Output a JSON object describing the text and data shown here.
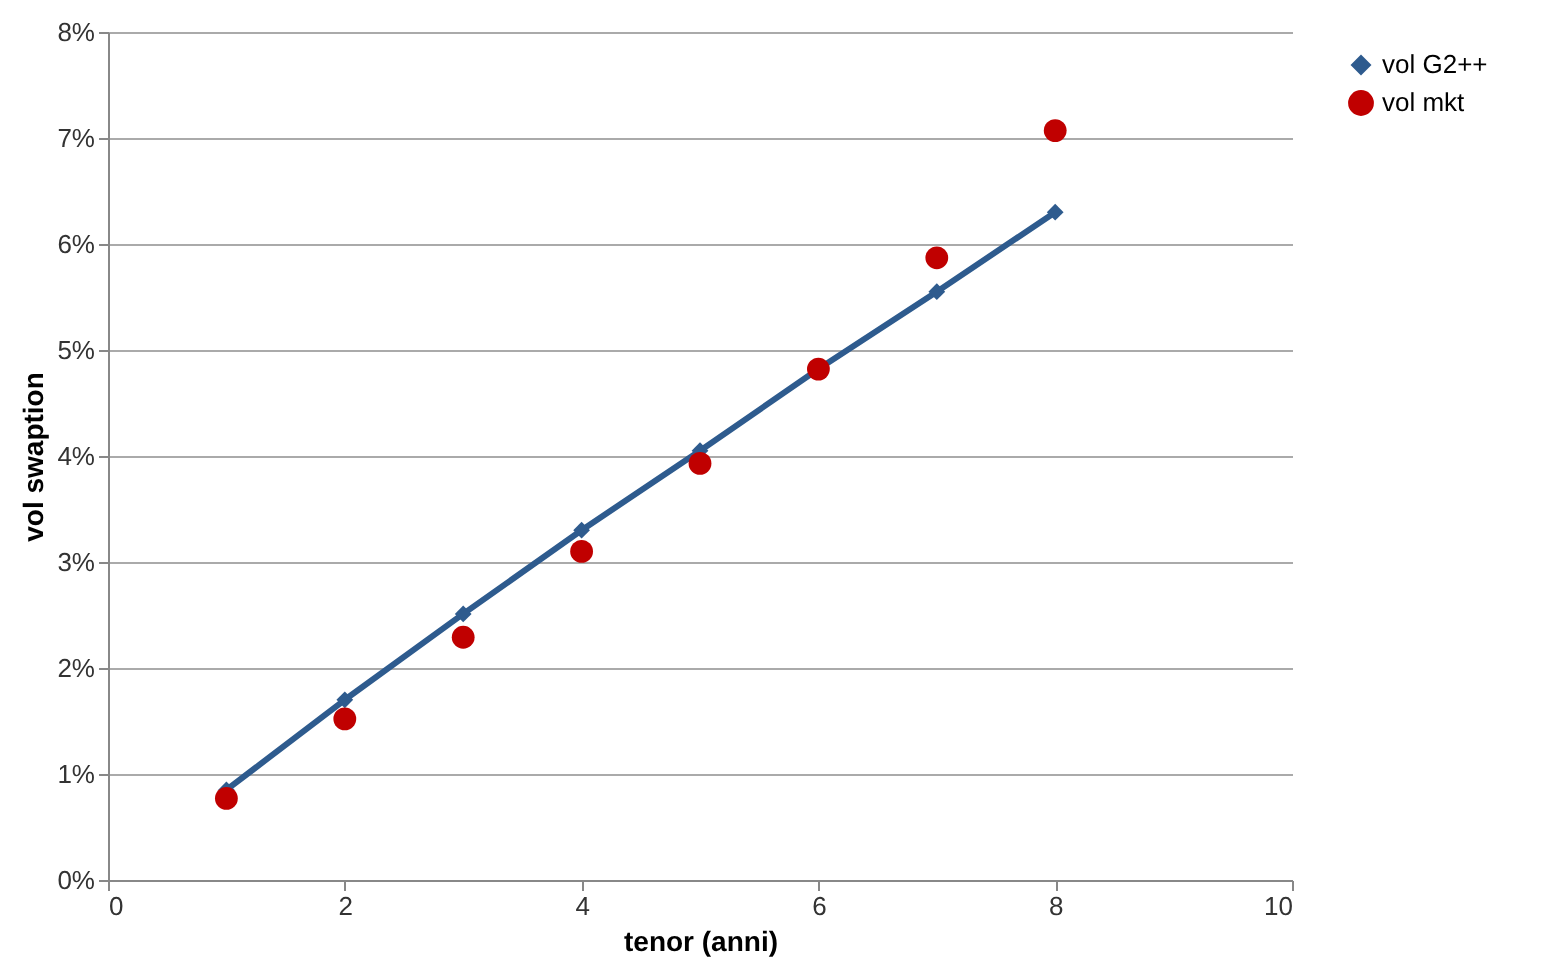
{
  "chart_data": {
    "type": "line",
    "xlabel": "tenor (anni)",
    "ylabel": "vol swaption",
    "xlim": [
      0,
      10
    ],
    "xticks": [
      0,
      2,
      4,
      6,
      8,
      10
    ],
    "ylim": [
      0,
      8
    ],
    "yticks": [
      {
        "value": 0,
        "label": "0%"
      },
      {
        "value": 1,
        "label": "1%"
      },
      {
        "value": 2,
        "label": "2%"
      },
      {
        "value": 3,
        "label": "3%"
      },
      {
        "value": 4,
        "label": "4%"
      },
      {
        "value": 5,
        "label": "5%"
      },
      {
        "value": 6,
        "label": "6%"
      },
      {
        "value": 7,
        "label": "7%"
      },
      {
        "value": 8,
        "label": "8%"
      }
    ],
    "grid": "y",
    "legend": "right",
    "series": [
      {
        "name": "vol G2++",
        "marker": "diamond",
        "color": "#2e5b8e",
        "x": [
          1,
          2,
          3,
          4,
          5,
          6,
          7,
          8
        ],
        "values": [
          0.85,
          1.7,
          2.51,
          3.3,
          4.05,
          4.82,
          5.55,
          6.3
        ]
      },
      {
        "name": "vol mkt",
        "type": "scatter",
        "marker": "circle",
        "color": "#c00000",
        "x": [
          1,
          2,
          3,
          4,
          5,
          6,
          7,
          8
        ],
        "values": [
          0.77,
          1.52,
          2.29,
          3.1,
          3.93,
          4.82,
          5.87,
          7.07
        ]
      }
    ]
  }
}
